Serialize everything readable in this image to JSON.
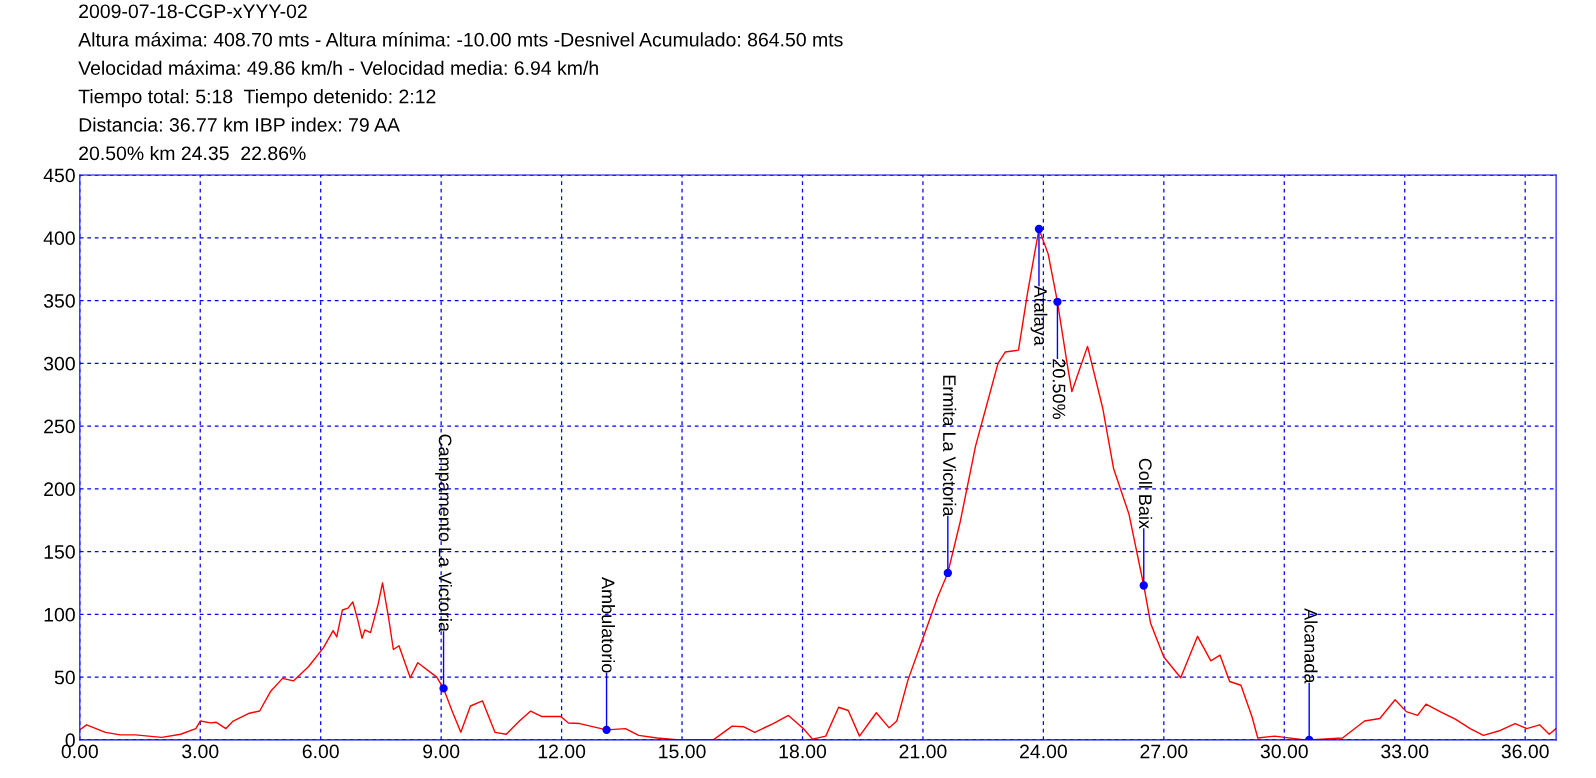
{
  "chart_data": {
    "type": "line",
    "title": "2009-07-18-CGP-xYYY-02",
    "annotations": [
      "Altura máxima: 408.70 mts - Altura mínima: -10.00 mts -Desnivel Acumulado: 864.50 mts",
      "Velocidad máxima: 49.86 km/h - Velocidad media: 6.94 km/h",
      "Tiempo total: 5:18  Tiempo detenido: 2:12",
      "Distancia: 36.77 km IBP index: 79 AA",
      "20.50% km 24.35  22.86%",
      {
        "text": "Campamento La Victoria",
        "x": 9.06,
        "y": 41
      },
      {
        "text": "Ambulatorio",
        "x": 13.12,
        "y": 8
      },
      {
        "text": "Ermita La Victoria",
        "x": 21.62,
        "y": 133
      },
      {
        "text": "Atalaya",
        "x": 23.89,
        "y": 407
      },
      {
        "text": "20.50%",
        "x": 24.35,
        "y": 349
      },
      {
        "text": "Coll Baix",
        "x": 26.5,
        "y": 123
      },
      {
        "text": "Alcanada",
        "x": 30.62,
        "y": 0
      }
    ],
    "x": [
      0,
      0.17,
      0.64,
      1.01,
      1.39,
      2.04,
      2.51,
      2.89,
      3.0,
      3.26,
      3.4,
      3.64,
      3.82,
      4.2,
      4.48,
      4.76,
      5.05,
      5.32,
      5.7,
      6.07,
      6.31,
      6.4,
      6.54,
      6.68,
      6.8,
      6.92,
      7.03,
      7.1,
      7.24,
      7.43,
      7.54,
      7.69,
      7.81,
      7.95,
      8.23,
      8.42,
      8.89,
      9.06,
      9.26,
      9.49,
      9.73,
      10.03,
      10.34,
      10.62,
      10.95,
      11.23,
      11.51,
      11.98,
      12.17,
      12.45,
      13.12,
      13.59,
      13.92,
      14.38,
      14.94,
      15.78,
      16.25,
      16.53,
      16.81,
      17.27,
      17.65,
      18.02,
      18.25,
      18.58,
      18.9,
      19.14,
      19.42,
      19.84,
      20.16,
      20.35,
      20.63,
      21.0,
      21.37,
      21.62,
      21.93,
      22.31,
      22.59,
      22.87,
      23.05,
      23.38,
      23.61,
      23.89,
      24.12,
      24.35,
      24.59,
      24.71,
      25.1,
      25.48,
      25.75,
      26.13,
      26.5,
      26.67,
      27.0,
      27.42,
      27.84,
      28.17,
      28.4,
      28.64,
      28.92,
      29.2,
      29.34,
      29.76,
      30.51,
      30.62,
      31.45,
      32.0,
      32.38,
      32.76,
      33.04,
      33.32,
      33.53,
      33.88,
      34.26,
      34.63,
      34.96,
      35.38,
      35.75,
      36.04,
      36.36,
      36.6,
      36.77
    ],
    "series": [
      {
        "color": "#ff0000",
        "values": [
          8,
          12,
          6,
          4,
          4,
          2,
          4.5,
          9,
          15,
          13.5,
          14,
          9,
          15,
          21,
          23,
          39,
          49,
          47,
          58.5,
          73.5,
          87,
          82,
          103.5,
          105,
          110,
          96,
          81,
          87.6,
          85.5,
          108,
          125,
          97.5,
          72,
          75,
          49.5,
          61.5,
          50,
          41,
          24,
          6,
          27,
          31,
          6,
          4.5,
          15,
          23,
          18.6,
          18.6,
          13.5,
          13,
          8,
          9,
          3.6,
          1.5,
          0,
          0,
          11,
          10.5,
          6,
          13,
          19.5,
          9,
          0.6,
          3,
          26,
          23.4,
          3,
          21.6,
          9.6,
          15,
          48,
          81,
          114,
          133,
          174,
          234,
          267,
          300,
          309,
          310.5,
          357,
          407,
          387,
          349,
          300,
          277.5,
          313.5,
          264,
          216,
          180,
          123,
          93,
          66,
          49.5,
          82.5,
          63,
          67.5,
          46.5,
          43.5,
          18,
          1.5,
          3,
          0,
          0,
          1.5,
          15,
          17,
          32,
          22.5,
          19.5,
          28.5,
          22.5,
          16.5,
          9,
          3.6,
          7.5,
          13,
          9,
          12,
          4.5,
          9
        ]
      }
    ],
    "xlim": [
      0,
      36.77
    ],
    "ylim": [
      0,
      450
    ],
    "xticks": [
      {
        "value": 0,
        "label": "0.00"
      },
      {
        "value": 3,
        "label": "3.00"
      },
      {
        "value": 6,
        "label": "6.00"
      },
      {
        "value": 9,
        "label": "9.00"
      },
      {
        "value": 12,
        "label": "12.00"
      },
      {
        "value": 15,
        "label": "15.00"
      },
      {
        "value": 18,
        "label": "18.00"
      },
      {
        "value": 21,
        "label": "21.00"
      },
      {
        "value": 24,
        "label": "24.00"
      },
      {
        "value": 27,
        "label": "27.00"
      },
      {
        "value": 30,
        "label": "30.00"
      },
      {
        "value": 33,
        "label": "33.00"
      },
      {
        "value": 36,
        "label": "36.00"
      }
    ],
    "yticks": [
      0,
      50,
      100,
      150,
      200,
      250,
      300,
      350,
      400,
      450
    ],
    "grid": true,
    "line_style": "solid",
    "marker": "none"
  }
}
